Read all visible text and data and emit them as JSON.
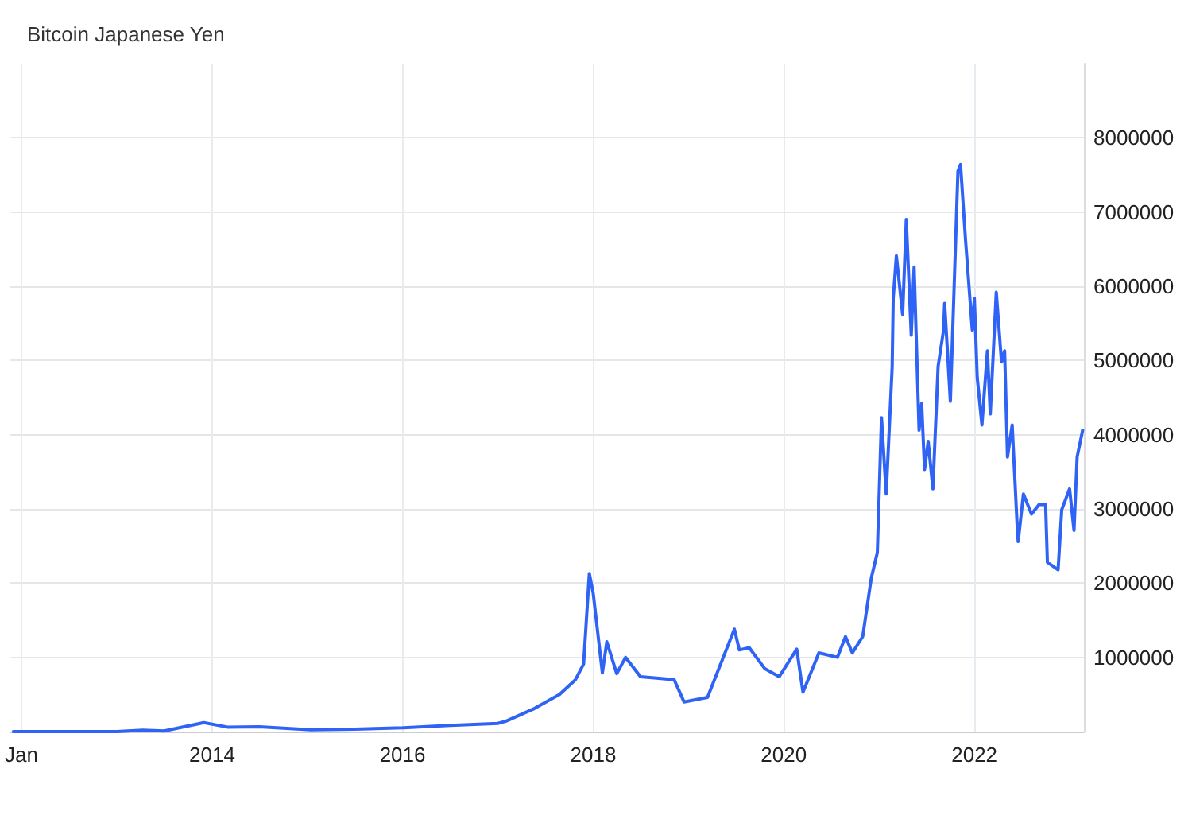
{
  "chart_data": {
    "type": "line",
    "title": "Bitcoin Japanese Yen",
    "x": [
      "2011-12-01",
      "2012-06-01",
      "2013-01-01",
      "2013-04-10",
      "2013-07-01",
      "2013-11-30",
      "2014-03-01",
      "2014-07-01",
      "2015-01-15",
      "2015-07-01",
      "2016-01-01",
      "2016-06-15",
      "2016-12-31",
      "2017-02-01",
      "2017-05-20",
      "2017-08-25",
      "2017-10-25",
      "2017-11-25",
      "2017-12-17",
      "2018-01-01",
      "2018-02-05",
      "2018-02-22",
      "2018-04-01",
      "2018-05-05",
      "2018-07-01",
      "2018-09-01",
      "2018-11-07",
      "2018-12-15",
      "2019-03-15",
      "2019-06-26",
      "2019-07-15",
      "2019-08-22",
      "2019-10-20",
      "2019-12-15",
      "2020-02-20",
      "2020-03-15",
      "2020-05-15",
      "2020-07-25",
      "2020-08-25",
      "2020-09-20",
      "2020-10-30",
      "2020-12-02",
      "2020-12-25",
      "2021-01-10",
      "2021-01-28",
      "2021-02-20",
      "2021-02-24",
      "2021-03-08",
      "2021-04-01",
      "2021-04-15",
      "2021-05-04",
      "2021-05-15",
      "2021-06-03",
      "2021-06-13",
      "2021-06-24",
      "2021-07-08",
      "2021-07-26",
      "2021-08-15",
      "2021-09-05",
      "2021-09-09",
      "2021-10-01",
      "2021-10-20",
      "2021-10-30",
      "2021-11-09",
      "2021-11-28",
      "2021-12-24",
      "2022-01-01",
      "2022-01-12",
      "2022-01-30",
      "2022-02-20",
      "2022-03-03",
      "2022-03-26",
      "2022-04-15",
      "2022-04-27",
      "2022-05-08",
      "2022-05-26",
      "2022-06-14",
      "2022-06-18",
      "2022-07-08",
      "2022-08-08",
      "2022-09-06",
      "2022-10-01",
      "2022-10-08",
      "2022-11-18",
      "2022-12-02",
      "2023-01-01",
      "2023-01-18",
      "2023-01-30",
      "2023-02-20"
    ],
    "series": [
      {
        "color": "#2f63f5",
        "values": [
          500,
          500,
          1300,
          20000,
          8000,
          120000,
          60000,
          65000,
          25000,
          33000,
          50000,
          80000,
          110000,
          140000,
          310000,
          500000,
          700000,
          910000,
          2130000,
          1860000,
          790000,
          1210000,
          780000,
          1000000,
          740000,
          720000,
          700000,
          400000,
          460000,
          1380000,
          1100000,
          1130000,
          850000,
          740000,
          1110000,
          530000,
          1060000,
          1000000,
          1280000,
          1060000,
          1280000,
          2070000,
          2410000,
          4230000,
          3200000,
          4920000,
          5840000,
          6410000,
          5620000,
          6900000,
          5340000,
          6260000,
          4060000,
          4420000,
          3530000,
          3910000,
          3270000,
          4920000,
          5410000,
          5770000,
          4450000,
          6480000,
          7550000,
          7640000,
          6630000,
          5410000,
          5840000,
          4770000,
          4130000,
          5130000,
          4280000,
          5920000,
          4980000,
          5130000,
          3700000,
          4130000,
          2780000,
          2560000,
          3200000,
          2930000,
          3060000,
          3060000,
          2280000,
          2180000,
          2990000,
          3270000,
          2710000,
          3700000,
          4060000
        ]
      }
    ],
    "xlim": [
      "2011-11-20",
      "2023-02-25"
    ],
    "xticks": [
      {
        "value": "2012-01-01",
        "label": "Jan"
      },
      "2014",
      "2016",
      "2018",
      "2020",
      "2022"
    ],
    "ylim": [
      0,
      9000000
    ],
    "yticks": [
      1000000,
      2000000,
      3000000,
      4000000,
      5000000,
      6000000,
      7000000,
      8000000
    ],
    "grid": true,
    "marker": "none"
  }
}
